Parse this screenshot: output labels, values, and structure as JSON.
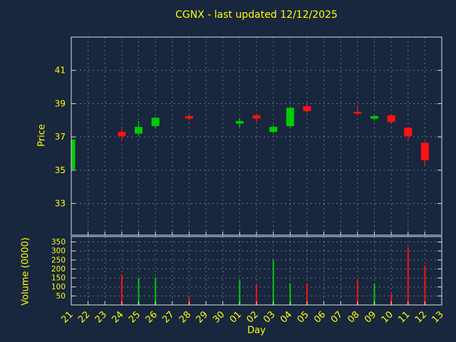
{
  "title": "CGNX - last updated 12/12/2025",
  "colors": {
    "background": "#18263e",
    "up": "#00cc00",
    "down": "#ff1212",
    "text": "#ffff00",
    "grid": "#c8d0dc",
    "frame": "#e0e0e0"
  },
  "price_axis": {
    "label": "Price",
    "ticks": [
      41,
      39,
      37,
      35,
      33
    ],
    "range": [
      31.1,
      43.0
    ]
  },
  "volume_axis": {
    "label": "Volume (0000)",
    "ticks": [
      350,
      300,
      250,
      200,
      150,
      100,
      50
    ],
    "range": [
      0,
      380
    ]
  },
  "x_axis": {
    "label": "Day",
    "ticks": [
      "21",
      "22",
      "23",
      "24",
      "25",
      "26",
      "27",
      "28",
      "29",
      "30",
      "01",
      "02",
      "03",
      "04",
      "05",
      "06",
      "07",
      "08",
      "09",
      "10",
      "11",
      "12",
      "13"
    ]
  },
  "chart_data": {
    "type": "candlestick",
    "title": "CGNX - last updated 12/12/2025",
    "xlabel": "Day",
    "ylabel_price": "Price",
    "ylabel_volume": "Volume (0000)",
    "price_ylim": [
      31.1,
      43.0
    ],
    "volume_ylim": [
      0,
      380
    ],
    "grid": true,
    "candles": [
      {
        "day": "21",
        "open": 35.05,
        "high": 36.85,
        "low": 35.0,
        "close": 36.85,
        "volume": 0
      },
      {
        "day": "24",
        "open": 37.3,
        "high": 37.5,
        "low": 36.8,
        "close": 37.05,
        "volume": 170
      },
      {
        "day": "25",
        "open": 37.2,
        "high": 37.95,
        "low": 37.1,
        "close": 37.6,
        "volume": 150
      },
      {
        "day": "26",
        "open": 37.65,
        "high": 38.2,
        "low": 37.55,
        "close": 38.15,
        "volume": 150
      },
      {
        "day": "28",
        "open": 38.25,
        "high": 38.3,
        "low": 38.0,
        "close": 38.1,
        "volume": 50
      },
      {
        "day": "01",
        "open": 37.8,
        "high": 38.15,
        "low": 37.6,
        "close": 37.95,
        "volume": 140
      },
      {
        "day": "02",
        "open": 38.3,
        "high": 38.4,
        "low": 37.9,
        "close": 38.1,
        "volume": 110
      },
      {
        "day": "03",
        "open": 37.3,
        "high": 37.7,
        "low": 37.2,
        "close": 37.6,
        "volume": 250
      },
      {
        "day": "04",
        "open": 37.65,
        "high": 38.8,
        "low": 37.55,
        "close": 38.75,
        "volume": 120
      },
      {
        "day": "05",
        "open": 38.85,
        "high": 39.0,
        "low": 38.45,
        "close": 38.55,
        "volume": 120
      },
      {
        "day": "08",
        "open": 38.5,
        "high": 38.85,
        "low": 38.3,
        "close": 38.4,
        "volume": 140
      },
      {
        "day": "09",
        "open": 38.1,
        "high": 38.3,
        "low": 38.0,
        "close": 38.25,
        "volume": 120
      },
      {
        "day": "10",
        "open": 38.3,
        "high": 38.35,
        "low": 37.85,
        "close": 37.9,
        "volume": 60
      },
      {
        "day": "11",
        "open": 37.55,
        "high": 37.6,
        "low": 36.75,
        "close": 37.05,
        "volume": 320
      },
      {
        "day": "12",
        "open": 36.65,
        "high": 36.7,
        "low": 35.3,
        "close": 35.6,
        "volume": 220
      }
    ]
  }
}
